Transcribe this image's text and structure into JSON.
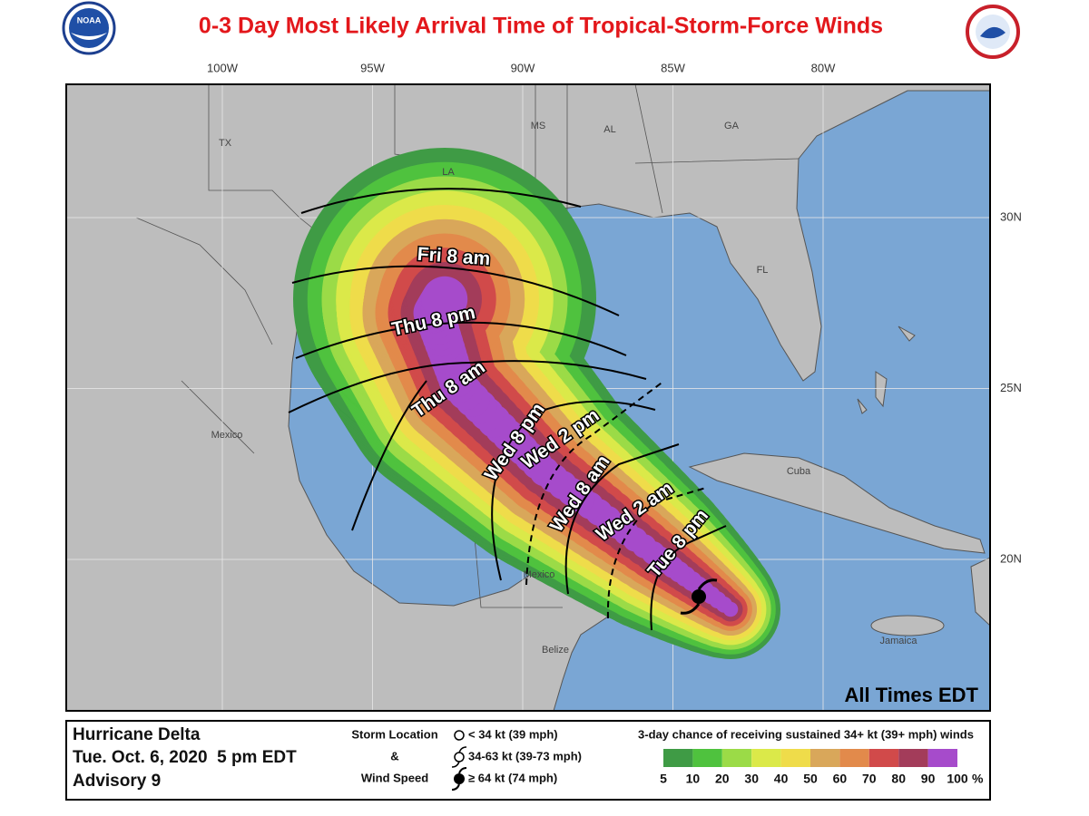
{
  "header": {
    "title": "0-3 Day Most Likely Arrival Time of Tropical-Storm-Force Winds",
    "logo_left": "NOAA"
  },
  "map": {
    "longitudes": [
      {
        "value": -100,
        "label": "100W"
      },
      {
        "value": -95,
        "label": "95W"
      },
      {
        "value": -90,
        "label": "90W"
      },
      {
        "value": -85,
        "label": "85W"
      },
      {
        "value": -80,
        "label": "80W"
      }
    ],
    "latitudes": [
      {
        "value": 30,
        "label": "30N"
      },
      {
        "value": 25,
        "label": "25N"
      },
      {
        "value": 20,
        "label": "20N"
      }
    ],
    "places": [
      "TX",
      "LA",
      "MS",
      "AL",
      "GA",
      "FL",
      "Mexico",
      "Mexico",
      "Cuba",
      "Belize",
      "Jamaica"
    ],
    "arrival_times": [
      "Fri 8 am",
      "Thu 8 pm",
      "Thu 8 am",
      "Wed 8 pm",
      "Wed 2 pm",
      "Wed 8 am",
      "Wed 2 am",
      "Tue 8 pm"
    ],
    "time_zone_note": "All Times EDT"
  },
  "legend": {
    "storm": "Hurricane Delta",
    "issued": "Tue. Oct. 6, 2020  5 pm EDT",
    "advisory": "Advisory 9",
    "symbol_heading": [
      "Storm Location",
      "&",
      "Wind Speed"
    ],
    "symbols": [
      "< 34 kt (39 mph)",
      "34-63 kt (39-73 mph)",
      "≥ 64 kt (74 mph)"
    ],
    "scale_title": "3-day chance of receiving sustained 34+ kt (39+ mph) winds",
    "scale_ticks": [
      5,
      10,
      20,
      30,
      40,
      50,
      60,
      70,
      80,
      90,
      100
    ],
    "scale_unit": "%",
    "scale_colors": [
      "#3f9b45",
      "#4fc23e",
      "#9bdb47",
      "#dbe949",
      "#efdc4a",
      "#d9a75a",
      "#e28a4b",
      "#d14a4a",
      "#a33c5a",
      "#a64bcb"
    ]
  }
}
